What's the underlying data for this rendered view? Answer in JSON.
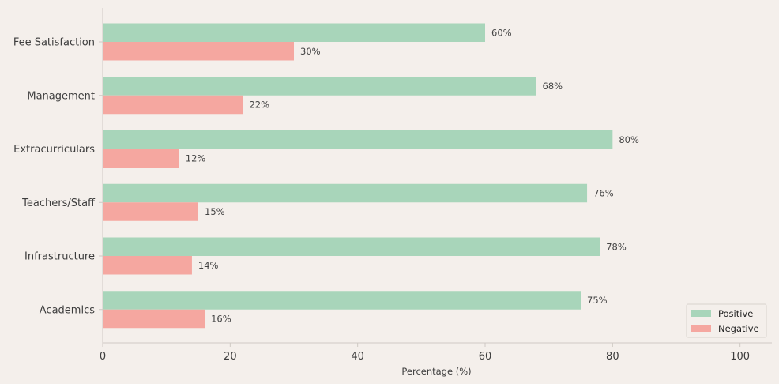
{
  "chart_data": {
    "type": "bar",
    "orientation": "horizontal",
    "categories": [
      "Fee Satisfaction",
      "Management",
      "Extracurriculars",
      "Teachers/Staff",
      "Infrastructure",
      "Academics"
    ],
    "series": [
      {
        "name": "Positive",
        "color": "#a8d5ba",
        "values": [
          60,
          68,
          80,
          76,
          78,
          75
        ],
        "labels": [
          "60%",
          "68%",
          "80%",
          "76%",
          "78%",
          "75%"
        ]
      },
      {
        "name": "Negative",
        "color": "#f5a7a0",
        "values": [
          30,
          22,
          12,
          15,
          14,
          16
        ],
        "labels": [
          "30%",
          "22%",
          "12%",
          "15%",
          "14%",
          "16%"
        ]
      }
    ],
    "title": "",
    "xlabel": "Percentage (%)",
    "ylabel": "",
    "xlim": [
      0,
      105
    ],
    "xticks": [
      0,
      20,
      40,
      60,
      80,
      100
    ],
    "xtick_labels": [
      "0",
      "20",
      "40",
      "60",
      "80",
      "100"
    ],
    "legend": [
      "Positive",
      "Negative"
    ],
    "legend_position": "bottom-right",
    "grid": false
  },
  "colors": {
    "background": "#f4efeb",
    "axis": "#cfc9c4",
    "text": "#3d3d3d"
  }
}
